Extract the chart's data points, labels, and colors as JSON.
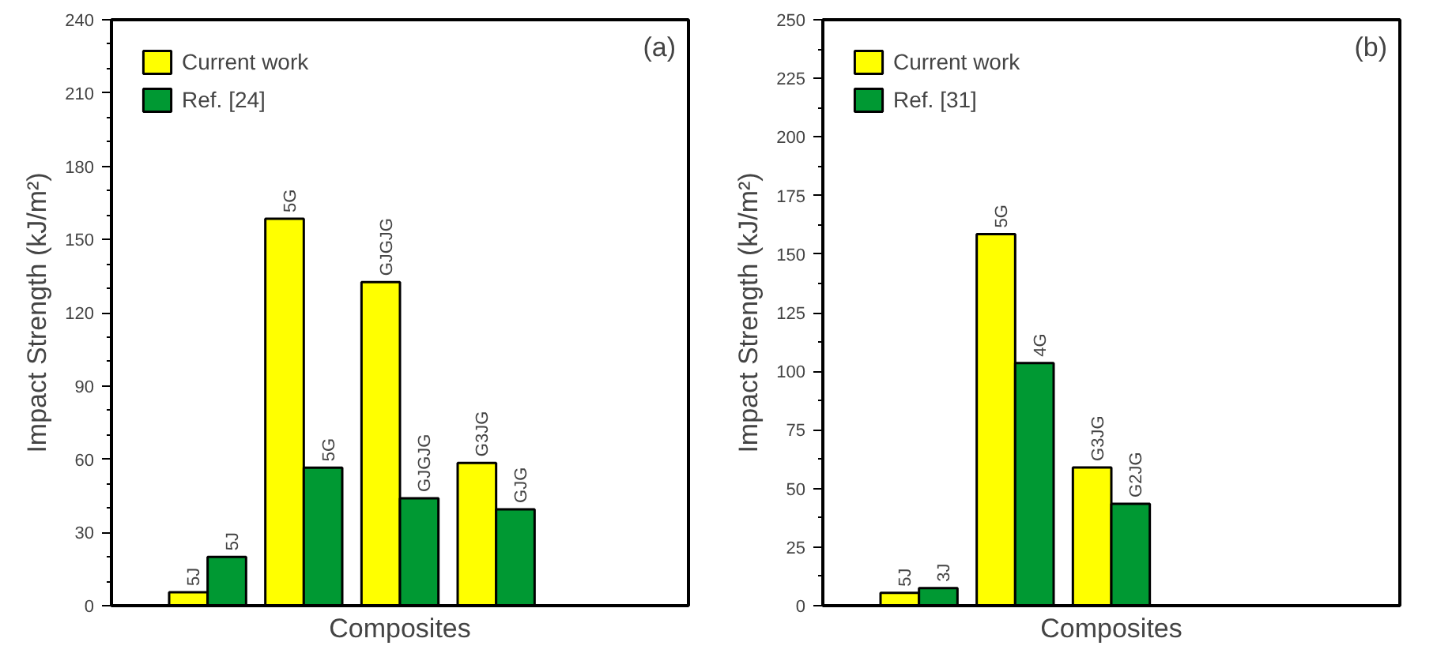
{
  "chart_data": [
    {
      "type": "bar",
      "xlabel": "Composites",
      "ylabel": "Impact Strength (kJ/m²)",
      "annotations": [
        "(a)",
        {
          "text": "5J",
          "y": 5.5
        },
        {
          "text": "5G",
          "y": 158.5
        },
        {
          "text": "GJGJG",
          "y": 132.5
        },
        {
          "text": "G3JG",
          "y": 58.5
        },
        {
          "text": "5J",
          "y": 20
        },
        {
          "text": "5G",
          "y": 56.5
        },
        {
          "text": "GJGJG",
          "y": 44
        },
        {
          "text": "GJG",
          "y": 39.5
        }
      ],
      "categories": [
        null,
        null,
        null,
        null,
        null
      ],
      "series": [
        {
          "name": "Current work",
          "color": "#ffff00",
          "values": [
            5.5,
            158.5,
            132.5,
            58.5,
            null
          ]
        },
        {
          "name": "Ref. [24]",
          "color": "#009933",
          "values": [
            20,
            56.5,
            44,
            39.5,
            null
          ]
        }
      ],
      "ylim": [
        0,
        240
      ],
      "yticks": [
        0,
        {
          "value": 10,
          "label": null
        },
        {
          "value": 20,
          "label": null
        },
        30,
        {
          "value": 40,
          "label": null
        },
        {
          "value": 50,
          "label": null
        },
        60,
        {
          "value": 70,
          "label": null
        },
        {
          "value": 80,
          "label": null
        },
        90,
        {
          "value": 100,
          "label": null
        },
        {
          "value": 110,
          "label": null
        },
        120,
        {
          "value": 130,
          "label": null
        },
        {
          "value": 140,
          "label": null
        },
        150,
        {
          "value": 160,
          "label": null
        },
        {
          "value": 170,
          "label": null
        },
        180,
        {
          "value": 190,
          "label": null
        },
        {
          "value": 200,
          "label": null
        },
        210,
        {
          "value": 220,
          "label": null
        },
        {
          "value": 230,
          "label": null
        },
        240
      ],
      "grid": false,
      "legend": "top left",
      "tick_labels": "y"
    },
    {
      "type": "bar",
      "xlabel": "Composites",
      "ylabel": "Impact Strength (kJ/m²)",
      "annotations": [
        "(b)",
        {
          "text": "5J",
          "y": 5.5
        },
        {
          "text": "5G",
          "y": 158.5
        },
        {
          "text": "G3JG",
          "y": 59
        },
        {
          "text": "3J",
          "y": 7.5
        },
        {
          "text": "4G",
          "y": 103.5
        },
        {
          "text": "G2JG",
          "y": 43.5
        }
      ],
      "categories": [
        null,
        null,
        null,
        null,
        null
      ],
      "series": [
        {
          "name": "Current work",
          "color": "#ffff00",
          "values": [
            5.5,
            158.5,
            59,
            null,
            null
          ]
        },
        {
          "name": "Ref. [31]",
          "color": "#009933",
          "values": [
            7.5,
            103.5,
            43.5,
            null,
            null
          ]
        }
      ],
      "ylim": [
        0,
        250
      ],
      "yticks": [
        0,
        {
          "value": 12.5,
          "label": null
        },
        25,
        {
          "value": 37.5,
          "label": null
        },
        50,
        {
          "value": 62.5,
          "label": null
        },
        75,
        {
          "value": 87.5,
          "label": null
        },
        100,
        {
          "value": 112.5,
          "label": null
        },
        125,
        {
          "value": 137.5,
          "label": null
        },
        150,
        {
          "value": 162.5,
          "label": null
        },
        175,
        {
          "value": 187.5,
          "label": null
        },
        200,
        {
          "value": 212.5,
          "label": null
        },
        225,
        {
          "value": 237.5,
          "label": null
        },
        250
      ],
      "grid": false,
      "legend": "top left",
      "tick_labels": "y"
    }
  ]
}
